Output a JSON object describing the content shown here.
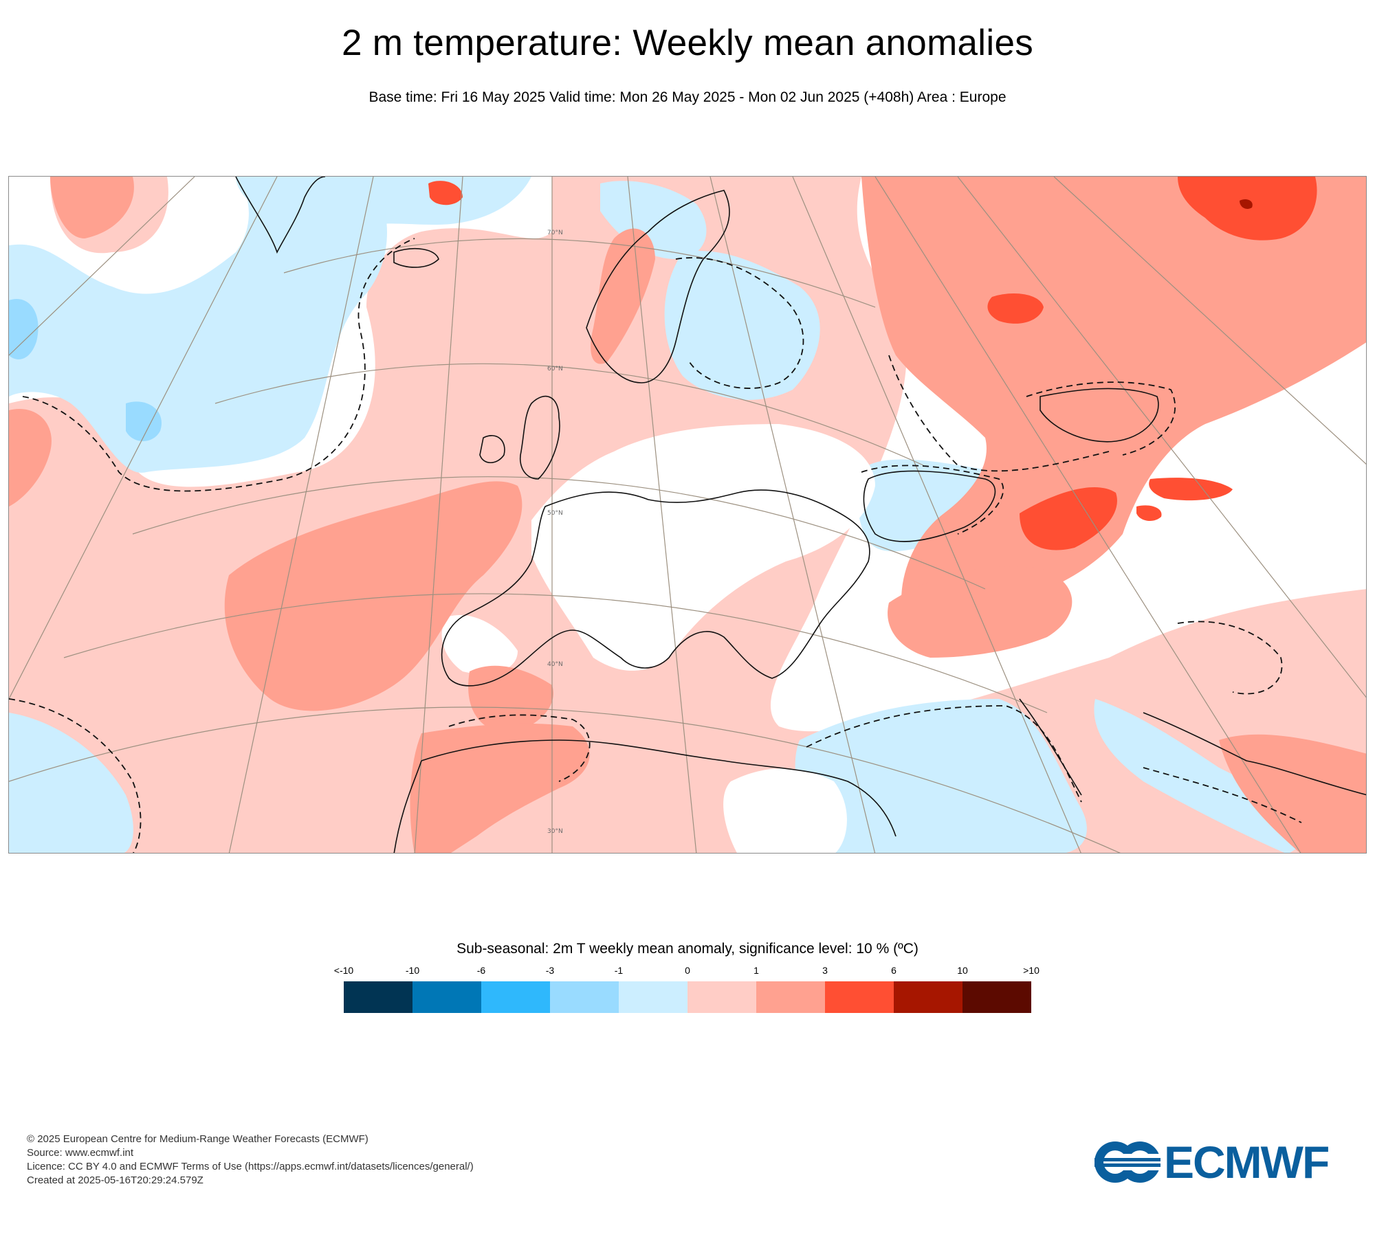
{
  "header": {
    "title": "2 m temperature: Weekly mean anomalies",
    "subtitle": "Base time: Fri 16 May 2025 Valid time: Mon 26 May 2025 - Mon 02 Jun 2025 (+408h) Area : Europe"
  },
  "map": {
    "latitude_labels": [
      "70°N",
      "60°N",
      "50°N",
      "40°N",
      "30°N"
    ],
    "colors": {
      "light_blue": "#cceeff",
      "mid_blue": "#99dbff",
      "light_red": "#ffcdc6",
      "mid_red": "#ffa190",
      "strong_red": "#ff4f33",
      "dark_red": "#a61600",
      "graticule": "#9c9080",
      "coast": "#111111"
    }
  },
  "legend": {
    "title": "Sub-seasonal: 2m T weekly mean anomaly, significance level: 10 % (ºC)",
    "ticks": [
      "<-10",
      "-10",
      "-6",
      "-3",
      "-1",
      "0",
      "1",
      "3",
      "6",
      "10",
      ">10"
    ],
    "colors": [
      "#013453",
      "#0077b6",
      "#2fb8fc",
      "#99dbff",
      "#cceeff",
      "#ffcdc6",
      "#ffa190",
      "#ff4f33",
      "#a61600",
      "#5c0a00"
    ]
  },
  "footer": {
    "line1": "© 2025 European Centre for Medium-Range Weather Forecasts (ECMWF)",
    "line2": "Source: www.ecmwf.int",
    "line3": "Licence: CC BY 4.0 and ECMWF Terms of Use (https://apps.ecmwf.int/datasets/licences/general/)",
    "line4": "Created at 2025-05-16T20:29:24.579Z"
  },
  "logo": {
    "text": "ECMWF",
    "color": "#0a5f9e"
  }
}
